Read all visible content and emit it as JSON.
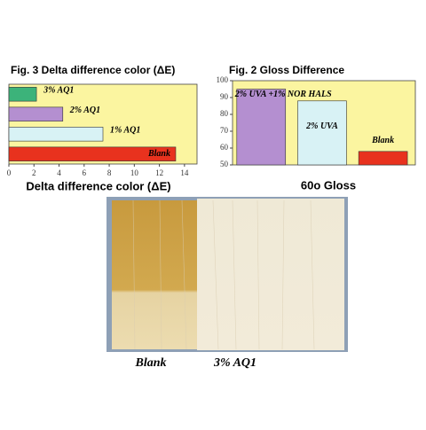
{
  "chart_data": [
    {
      "type": "bar",
      "horizontal": true,
      "title": "Fig. 3 Delta difference color (ΔE)",
      "x_label": "Delta difference color (ΔE)",
      "categories": [
        "3% AQ1",
        "2% AQ1",
        "1% AQ1",
        "Blank"
      ],
      "values": [
        2.2,
        4.3,
        7.5,
        13.3
      ],
      "colors": [
        "#3cb37a",
        "#b48fd0",
        "#d8f2f5",
        "#e8321e"
      ],
      "background": "#fbf5a0",
      "xlim": [
        0,
        15
      ],
      "xticks": [
        0,
        2,
        4,
        6,
        8,
        10,
        12,
        14
      ]
    },
    {
      "type": "bar",
      "horizontal": false,
      "title": "Fig. 2 Gloss Difference",
      "x_label": "60o Gloss",
      "categories": [
        "2% UVA +1% NOR HALS",
        "2% UVA",
        "Blank"
      ],
      "values": [
        95,
        88,
        58
      ],
      "colors": [
        "#b48fd0",
        "#d8f2f5",
        "#e8321e"
      ],
      "background": "#fbf5a0",
      "ylim": [
        50,
        100
      ],
      "yticks": [
        50,
        60,
        70,
        80,
        90,
        100
      ]
    }
  ],
  "photo": {
    "labels": [
      "Blank",
      "3% AQ1"
    ]
  }
}
